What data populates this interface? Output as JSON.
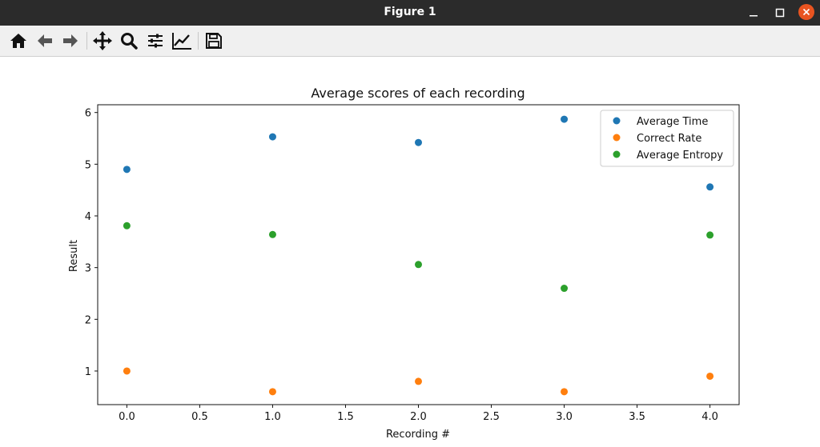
{
  "window": {
    "title": "Figure 1"
  },
  "toolbar": {
    "buttons": [
      "home-icon",
      "back-arrow-icon",
      "forward-arrow-icon",
      "pan-icon",
      "zoom-icon",
      "configure-subplots-icon",
      "edit-axis-icon",
      "save-icon"
    ]
  },
  "chart_data": {
    "type": "scatter",
    "title": "Average scores of each recording",
    "xlabel": "Recording #",
    "ylabel": "Result",
    "xlim": [
      -0.2,
      4.2
    ],
    "ylim": [
      0.35,
      6.15
    ],
    "xticks": [
      0.0,
      0.5,
      1.0,
      1.5,
      2.0,
      2.5,
      3.0,
      3.5,
      4.0
    ],
    "xtick_labels": [
      "0.0",
      "0.5",
      "1.0",
      "1.5",
      "2.0",
      "2.5",
      "3.0",
      "3.5",
      "4.0"
    ],
    "yticks": [
      1,
      2,
      3,
      4,
      5,
      6
    ],
    "ytick_labels": [
      "1",
      "2",
      "3",
      "4",
      "5",
      "6"
    ],
    "grid": false,
    "legend_position": "top-right",
    "x": [
      0,
      1,
      2,
      3,
      4
    ],
    "series": [
      {
        "name": "Average Time",
        "color": "#1f77b4",
        "values": [
          4.9,
          5.53,
          5.42,
          5.87,
          4.56
        ]
      },
      {
        "name": "Correct Rate",
        "color": "#ff7f0e",
        "values": [
          1.0,
          0.6,
          0.8,
          0.6,
          0.9
        ]
      },
      {
        "name": "Average Entropy",
        "color": "#2ca02c",
        "values": [
          3.81,
          3.64,
          3.06,
          2.6,
          3.63
        ]
      }
    ]
  }
}
